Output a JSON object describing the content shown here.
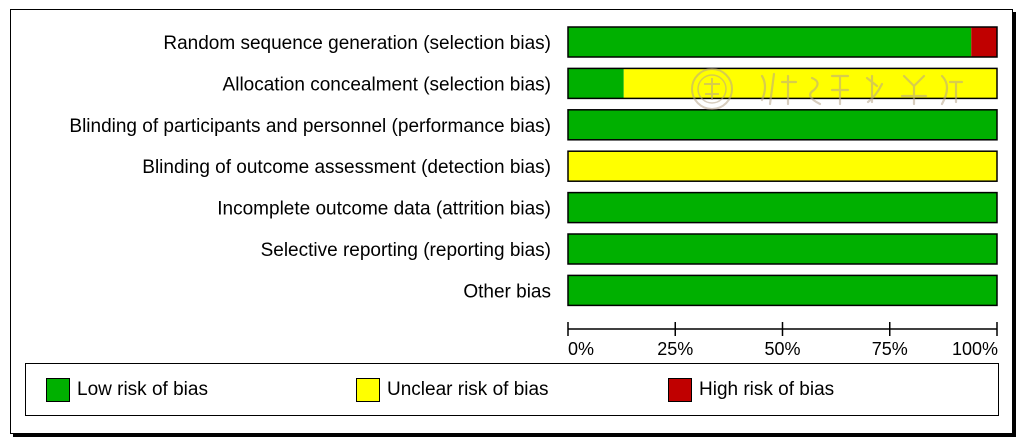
{
  "chart_data": {
    "type": "bar",
    "orientation": "horizontal",
    "stacked": true,
    "percent": true,
    "categories": [
      "Random sequence generation (selection bias)",
      "Allocation concealment (selection bias)",
      "Blinding of participants and personnel (performance bias)",
      "Blinding of outcome assessment (detection bias)",
      "Incomplete outcome data (attrition bias)",
      "Selective reporting (reporting bias)",
      "Other bias"
    ],
    "series": [
      {
        "name": "Low risk of bias",
        "color": "#00b000",
        "values": [
          94,
          13,
          100,
          0,
          100,
          100,
          100
        ]
      },
      {
        "name": "Unclear risk of bias",
        "color": "#ffff00",
        "values": [
          0,
          87,
          0,
          100,
          0,
          0,
          0
        ]
      },
      {
        "name": "High risk of bias",
        "color": "#c00000",
        "values": [
          6,
          0,
          0,
          0,
          0,
          0,
          0
        ]
      }
    ],
    "xlim": [
      0,
      100
    ],
    "ticks": [
      "0%",
      "25%",
      "50%",
      "75%",
      "100%"
    ],
    "tick_values": [
      0,
      25,
      50,
      75,
      100
    ],
    "legend_position": "bottom",
    "grid": false
  },
  "legend": {
    "items": [
      {
        "label": "Low risk of bias",
        "color": "#00b000"
      },
      {
        "label": "Unclear risk of bias",
        "color": "#ffff00"
      },
      {
        "label": "High risk of bias",
        "color": "#c00000"
      }
    ]
  },
  "watermark": {
    "icon": "seal-watermark-icon"
  }
}
